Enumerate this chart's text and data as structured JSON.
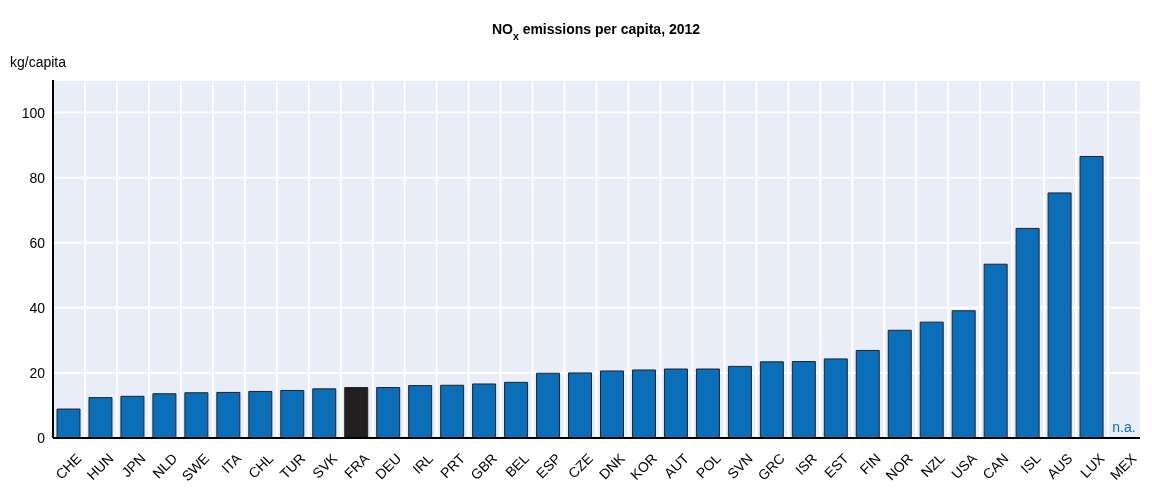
{
  "chart_data": {
    "type": "bar",
    "title": "NO$_{x}$ emissions per capita, 2012",
    "ylabel": "kg/capita",
    "categories": [
      "CHE",
      "HUN",
      "JPN",
      "NLD",
      "SWE",
      "ITA",
      "CHL",
      "TUR",
      "SVK",
      "FRA",
      "DEU",
      "IRL",
      "PRT",
      "GBR",
      "BEL",
      "ESP",
      "CZE",
      "DNK",
      "KOR",
      "AUT",
      "POL",
      "SVN",
      "GRC",
      "ISR",
      "EST",
      "FIN",
      "NOR",
      "NZL",
      "USA",
      "CAN",
      "ISL",
      "AUS",
      "LUX",
      "MEX"
    ],
    "values": [
      8.9,
      12.4,
      12.8,
      13.6,
      13.9,
      14.0,
      14.3,
      14.6,
      15.1,
      15.5,
      15.5,
      16.1,
      16.2,
      16.6,
      17.1,
      19.9,
      20.0,
      20.6,
      20.9,
      21.2,
      21.2,
      22.0,
      23.4,
      23.5,
      24.3,
      26.9,
      33.1,
      35.6,
      39.1,
      53.4,
      64.4,
      75.3,
      86.5,
      null
    ],
    "colors": [
      "#0a6eb8",
      "#0a6eb8",
      "#0a6eb8",
      "#0a6eb8",
      "#0a6eb8",
      "#0a6eb8",
      "#0a6eb8",
      "#0a6eb8",
      "#0a6eb8",
      "#231f20",
      "#0a6eb8",
      "#0a6eb8",
      "#0a6eb8",
      "#0a6eb8",
      "#0a6eb8",
      "#0a6eb8",
      "#0a6eb8",
      "#0a6eb8",
      "#0a6eb8",
      "#0a6eb8",
      "#0a6eb8",
      "#0a6eb8",
      "#0a6eb8",
      "#0a6eb8",
      "#0a6eb8",
      "#0a6eb8",
      "#0a6eb8",
      "#0a6eb8",
      "#0a6eb8",
      "#0a6eb8",
      "#0a6eb8",
      "#0a6eb8",
      "#0a6eb8",
      "#0a6eb8"
    ],
    "ylim": [
      0,
      110
    ],
    "yticks": [
      0,
      20,
      40,
      60,
      80,
      100
    ],
    "grid": true,
    "annotations": [
      "n.a."
    ]
  }
}
